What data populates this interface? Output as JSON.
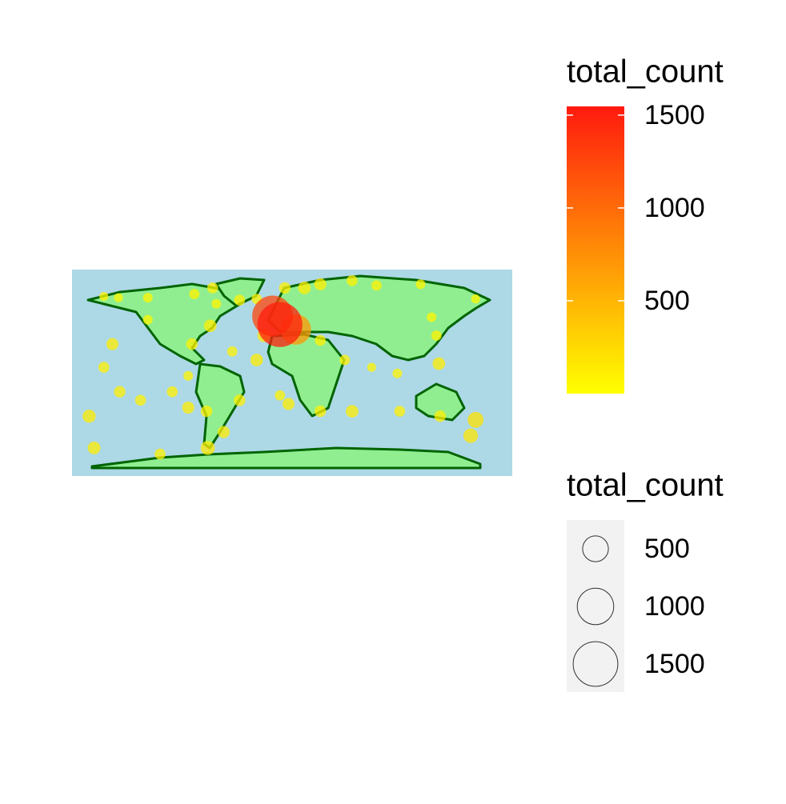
{
  "chart_data": {
    "type": "bubble-map",
    "x": [
      -154,
      -142,
      -118,
      -80,
      -65,
      -62,
      -67,
      -82,
      -147,
      -154,
      -141,
      -166,
      -162,
      -108,
      -69,
      -56,
      -43,
      -29,
      -23,
      -10,
      -16,
      3,
      -6,
      10,
      23,
      49,
      69,
      105,
      150,
      118,
      120,
      86,
      65,
      49,
      23,
      -3,
      -10,
      -85,
      -98,
      -85,
      -124,
      -70,
      88,
      121,
      150,
      146,
      -43,
      -29,
      -49,
      -118,
      23,
      43,
      114
    ],
    "y": [
      61,
      60,
      60,
      63,
      68,
      55,
      37,
      22,
      22,
      3,
      -17,
      -37,
      -63,
      -68,
      -63,
      -50,
      -24,
      9,
      29,
      38,
      45,
      34,
      68,
      68,
      71,
      74,
      70,
      71,
      59,
      29,
      6,
      -2,
      3,
      -33,
      -33,
      -27,
      -20,
      -4,
      -17,
      -30,
      -24,
      -33,
      -33,
      -37,
      -40,
      -53,
      58,
      59,
      16,
      42,
      25,
      9,
      44
    ],
    "values": [
      60,
      60,
      70,
      80,
      90,
      70,
      120,
      100,
      110,
      90,
      100,
      130,
      120,
      90,
      150,
      110,
      100,
      120,
      130,
      1520,
      1250,
      700,
      100,
      120,
      110,
      90,
      80,
      70,
      60,
      80,
      120,
      70,
      60,
      120,
      100,
      110,
      80,
      70,
      90,
      110,
      90,
      100,
      90,
      100,
      190,
      160,
      90,
      80,
      80,
      70,
      90,
      80,
      70
    ],
    "xlim": [
      -180,
      180
    ],
    "ylim": [
      -86,
      83
    ],
    "color_low": "#ffff00",
    "color_high": "#ff1a0e",
    "color_legend": {
      "title": "total_count",
      "lim": [
        0,
        1547
      ],
      "ticks": [
        500,
        1000,
        1500
      ]
    },
    "size_legend": {
      "title": "total_count",
      "breaks": [
        500,
        1000,
        1500
      ]
    }
  }
}
